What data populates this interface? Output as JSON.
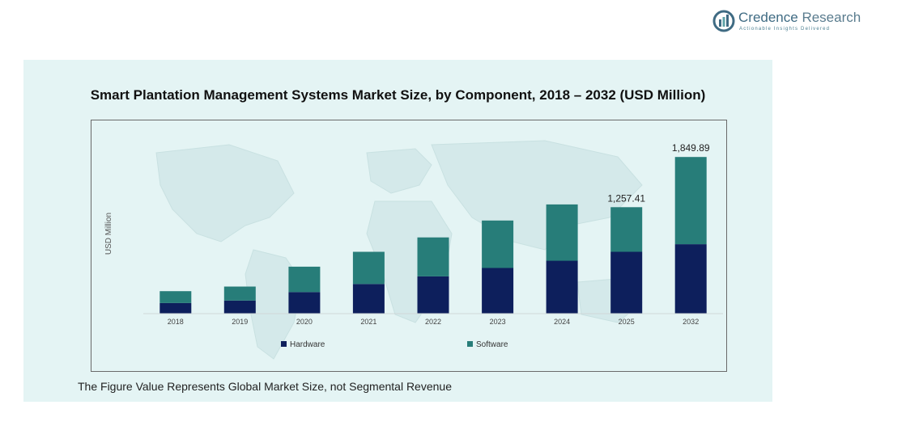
{
  "brand": {
    "name_part1": "Credence",
    "name_part2": " Research",
    "tagline": "Actionable Insights Delivered",
    "logo_icon": "credence-research-logo-icon"
  },
  "footnote": "The Figure Value Represents Global Market Size, not Segmental Revenue",
  "colors": {
    "hardware": "#0d1f5c",
    "software": "#277d79",
    "panel_bg": "#e4f4f4"
  },
  "chart_data": {
    "type": "bar",
    "stacked": true,
    "title": "Smart Plantation Management Systems Market Size, by Component, 2018 – 2032 (USD Million)",
    "xlabel": "",
    "ylabel": "USD Million",
    "categories": [
      "2018",
      "2019",
      "2020",
      "2021",
      "2022",
      "2023",
      "2024",
      "2025",
      "2032"
    ],
    "series": [
      {
        "name": "Hardware",
        "values": [
          125,
          155,
          255,
          350,
          440,
          540,
          625,
          730,
          820
        ]
      },
      {
        "name": "Software",
        "values": [
          140,
          165,
          300,
          380,
          460,
          560,
          665,
          527.41,
          1029.89
        ]
      }
    ],
    "totals_labels": [
      {
        "category": "2025",
        "text": "1,257.41"
      },
      {
        "category": "2032",
        "text": "1,849.89"
      }
    ],
    "ylim": [
      0,
      1900
    ],
    "grid": false,
    "legend_position": "bottom"
  }
}
